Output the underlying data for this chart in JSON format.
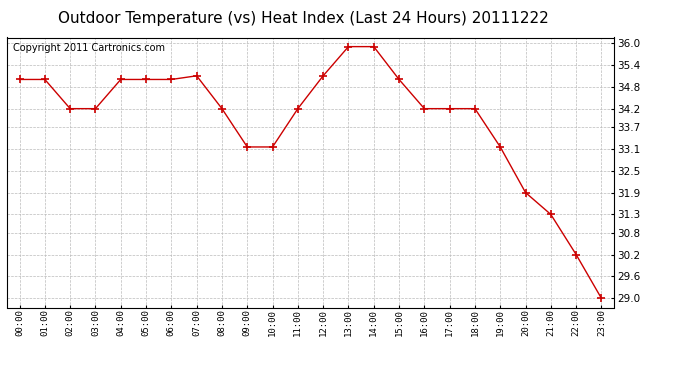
{
  "title": "Outdoor Temperature (vs) Heat Index (Last 24 Hours) 20111222",
  "copyright_text": "Copyright 2011 Cartronics.com",
  "x_labels": [
    "00:00",
    "01:00",
    "02:00",
    "03:00",
    "04:00",
    "05:00",
    "06:00",
    "07:00",
    "08:00",
    "09:00",
    "10:00",
    "11:00",
    "12:00",
    "13:00",
    "14:00",
    "15:00",
    "16:00",
    "17:00",
    "18:00",
    "19:00",
    "20:00",
    "21:00",
    "22:00",
    "23:00"
  ],
  "y_values": [
    35.0,
    35.0,
    34.2,
    34.2,
    35.0,
    35.0,
    35.0,
    35.1,
    34.2,
    33.15,
    33.15,
    34.2,
    35.1,
    35.9,
    35.9,
    35.0,
    34.2,
    34.2,
    34.2,
    33.15,
    31.9,
    31.3,
    30.2,
    29.0
  ],
  "line_color": "#cc0000",
  "marker": "+",
  "marker_size": 6,
  "marker_color": "#cc0000",
  "bg_color": "#ffffff",
  "grid_color": "#bbbbbb",
  "yticks": [
    29.0,
    29.6,
    30.2,
    30.8,
    31.3,
    31.9,
    32.5,
    33.1,
    33.7,
    34.2,
    34.8,
    35.4,
    36.0
  ],
  "ylim_min": 28.75,
  "ylim_max": 36.15,
  "title_fontsize": 11,
  "copyright_fontsize": 7
}
